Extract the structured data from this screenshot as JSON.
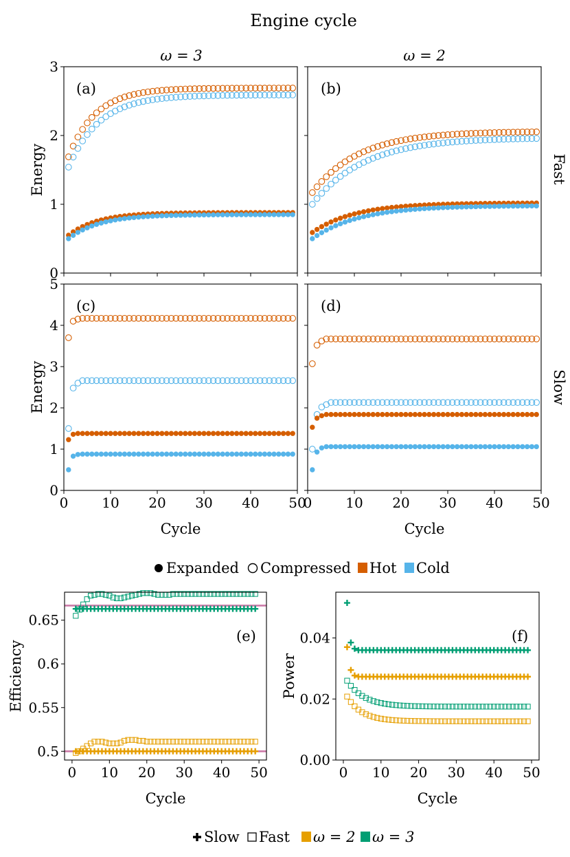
{
  "figure_title": "Engine cycle",
  "colors": {
    "hot": "#d55e00",
    "cold": "#56b4e9",
    "omega2": "#e69f00",
    "omega3": "#009e73",
    "reference": "#cc79a7"
  },
  "legend_top": {
    "expanded": "Expanded",
    "compressed": "Compressed",
    "hot": "Hot",
    "cold": "Cold"
  },
  "legend_bottom": {
    "slow": "Slow",
    "fast": "Fast",
    "omega2": "ω = 2",
    "omega3": "ω = 3"
  },
  "chart_data": [
    {
      "id": "a",
      "type": "scatter",
      "panel_label": "(a)",
      "column_title": "ω = 3",
      "ylabel": "Energy",
      "xlabel": "",
      "xlim": [
        0,
        50
      ],
      "ylim": [
        0,
        3
      ],
      "xticks": [
        0,
        10,
        20,
        30,
        40,
        50
      ],
      "yticks": [
        0,
        1,
        2,
        3
      ],
      "x": "cycles 1–49",
      "series": [
        {
          "name": "Hot compressed",
          "kind": "saturating",
          "start": 1.69,
          "end": 2.69,
          "rate": 0.17
        },
        {
          "name": "Cold compressed",
          "kind": "saturating",
          "start": 1.54,
          "end": 2.59,
          "rate": 0.15
        },
        {
          "name": "Hot expanded",
          "kind": "saturating",
          "start": 0.55,
          "end": 0.88,
          "rate": 0.16
        },
        {
          "name": "Cold expanded",
          "kind": "saturating",
          "start": 0.5,
          "end": 0.85,
          "rate": 0.15
        }
      ]
    },
    {
      "id": "b",
      "type": "scatter",
      "panel_label": "(b)",
      "column_title": "ω = 2",
      "row_title": "Fast",
      "ylabel": "",
      "xlabel": "",
      "xlim": [
        0,
        50
      ],
      "ylim": [
        0,
        3
      ],
      "xticks": [
        0,
        10,
        20,
        30,
        40,
        50
      ],
      "yticks": [
        0,
        1,
        2,
        3
      ],
      "x": "cycles 1–49",
      "series": [
        {
          "name": "Hot compressed",
          "kind": "saturating",
          "start": 1.17,
          "end": 2.06,
          "rate": 0.1
        },
        {
          "name": "Cold compressed",
          "kind": "saturating",
          "start": 1.0,
          "end": 1.97,
          "rate": 0.09
        },
        {
          "name": "Hot expanded",
          "kind": "saturating",
          "start": 0.59,
          "end": 1.02,
          "rate": 0.11
        },
        {
          "name": "Cold expanded",
          "kind": "saturating",
          "start": 0.5,
          "end": 0.98,
          "rate": 0.1
        }
      ]
    },
    {
      "id": "c",
      "type": "scatter",
      "panel_label": "(c)",
      "ylabel": "Energy",
      "xlabel": "Cycle",
      "xlim": [
        0,
        50
      ],
      "ylim": [
        0,
        5
      ],
      "xticks": [
        0,
        10,
        20,
        30,
        40,
        50
      ],
      "yticks": [
        0,
        1,
        2,
        3,
        4,
        5
      ],
      "x": "cycles 1–49",
      "series": [
        {
          "name": "Hot compressed",
          "kind": "listed_then_flat",
          "values": [
            3.7,
            4.1,
            4.15
          ],
          "flat": 4.17
        },
        {
          "name": "Cold compressed",
          "kind": "listed_then_flat",
          "values": [
            1.5,
            2.48,
            2.6
          ],
          "flat": 2.66
        },
        {
          "name": "Hot expanded",
          "kind": "listed_then_flat",
          "values": [
            1.23,
            1.36
          ],
          "flat": 1.38
        },
        {
          "name": "Cold expanded",
          "kind": "listed_then_flat",
          "values": [
            0.5,
            0.83,
            0.87
          ],
          "flat": 0.88
        }
      ]
    },
    {
      "id": "d",
      "type": "scatter",
      "panel_label": "(d)",
      "row_title": "Slow",
      "ylabel": "",
      "xlabel": "Cycle",
      "xlim": [
        0,
        50
      ],
      "ylim": [
        0,
        5
      ],
      "xticks": [
        0,
        10,
        20,
        30,
        40,
        50
      ],
      "yticks": [
        0,
        1,
        2,
        3,
        4,
        5
      ],
      "x": "cycles 1–49",
      "series": [
        {
          "name": "Hot compressed",
          "kind": "listed_then_flat",
          "values": [
            3.07,
            3.52,
            3.62
          ],
          "flat": 3.67
        },
        {
          "name": "Cold compressed",
          "kind": "listed_then_flat",
          "values": [
            1.0,
            1.84,
            2.02,
            2.08
          ],
          "flat": 2.13
        },
        {
          "name": "Hot expanded",
          "kind": "listed_then_flat",
          "values": [
            1.53,
            1.75,
            1.81
          ],
          "flat": 1.84
        },
        {
          "name": "Cold expanded",
          "kind": "listed_then_flat",
          "values": [
            0.5,
            0.93,
            1.03
          ],
          "flat": 1.06
        }
      ]
    },
    {
      "id": "e",
      "type": "scatter",
      "panel_label": "(e)",
      "ylabel": "Efficiency",
      "xlabel": "Cycle",
      "xlim": [
        -2,
        52
      ],
      "ylim": [
        0.49,
        0.682
      ],
      "xticks": [
        0,
        10,
        20,
        30,
        40,
        50
      ],
      "yticks": [
        0.5,
        0.55,
        0.6,
        0.65
      ],
      "x": "cycles 1–49",
      "reference_lines": [
        0.5,
        0.6667
      ],
      "series": [
        {
          "name": "ω = 3 fast",
          "kind": "listed_then_flat",
          "values": [
            0.655,
            0.662,
            0.668,
            0.674,
            0.678,
            0.679,
            0.68,
            0.68,
            0.679,
            0.678,
            0.676,
            0.675,
            0.675,
            0.676,
            0.677,
            0.678,
            0.679,
            0.68,
            0.681,
            0.681,
            0.681,
            0.68,
            0.679,
            0.679,
            0.679,
            0.679
          ],
          "flat": 0.68
        },
        {
          "name": "ω = 3 slow",
          "kind": "listed_then_flat",
          "values": [],
          "flat": 0.663
        },
        {
          "name": "ω = 2 fast",
          "kind": "listed_then_flat",
          "values": [
            0.498,
            0.5,
            0.503,
            0.506,
            0.509,
            0.511,
            0.511,
            0.511,
            0.51,
            0.509,
            0.509,
            0.509,
            0.51,
            0.512,
            0.513,
            0.513,
            0.513,
            0.512,
            0.512,
            0.511,
            0.511,
            0.511,
            0.511
          ],
          "flat": 0.511
        },
        {
          "name": "ω = 2 slow",
          "kind": "listed_then_flat",
          "values": [],
          "flat": 0.5
        }
      ]
    },
    {
      "id": "f",
      "type": "scatter",
      "panel_label": "(f)",
      "ylabel": "Power",
      "xlabel": "Cycle",
      "xlim": [
        -2,
        52
      ],
      "ylim": [
        0,
        0.055
      ],
      "xticks": [
        0,
        10,
        20,
        30,
        40,
        50
      ],
      "yticks": [
        0.0,
        0.02,
        0.04
      ],
      "ytick_labels": [
        "0.00",
        "0.02",
        "0.04"
      ],
      "x": "cycles 1–49",
      "series": [
        {
          "name": "ω = 3 slow",
          "kind": "listed_then_flat",
          "values": [
            0.0515,
            0.0385,
            0.0365
          ],
          "flat": 0.036
        },
        {
          "name": "ω = 2 slow",
          "kind": "listed_then_flat",
          "values": [
            0.037,
            0.0295,
            0.0277
          ],
          "flat": 0.0273
        },
        {
          "name": "ω = 3 fast",
          "kind": "saturating",
          "start": 0.026,
          "end": 0.0175,
          "rate": 0.22
        },
        {
          "name": "ω = 2 fast",
          "kind": "saturating",
          "start": 0.0208,
          "end": 0.0127,
          "rate": 0.25
        }
      ]
    }
  ]
}
